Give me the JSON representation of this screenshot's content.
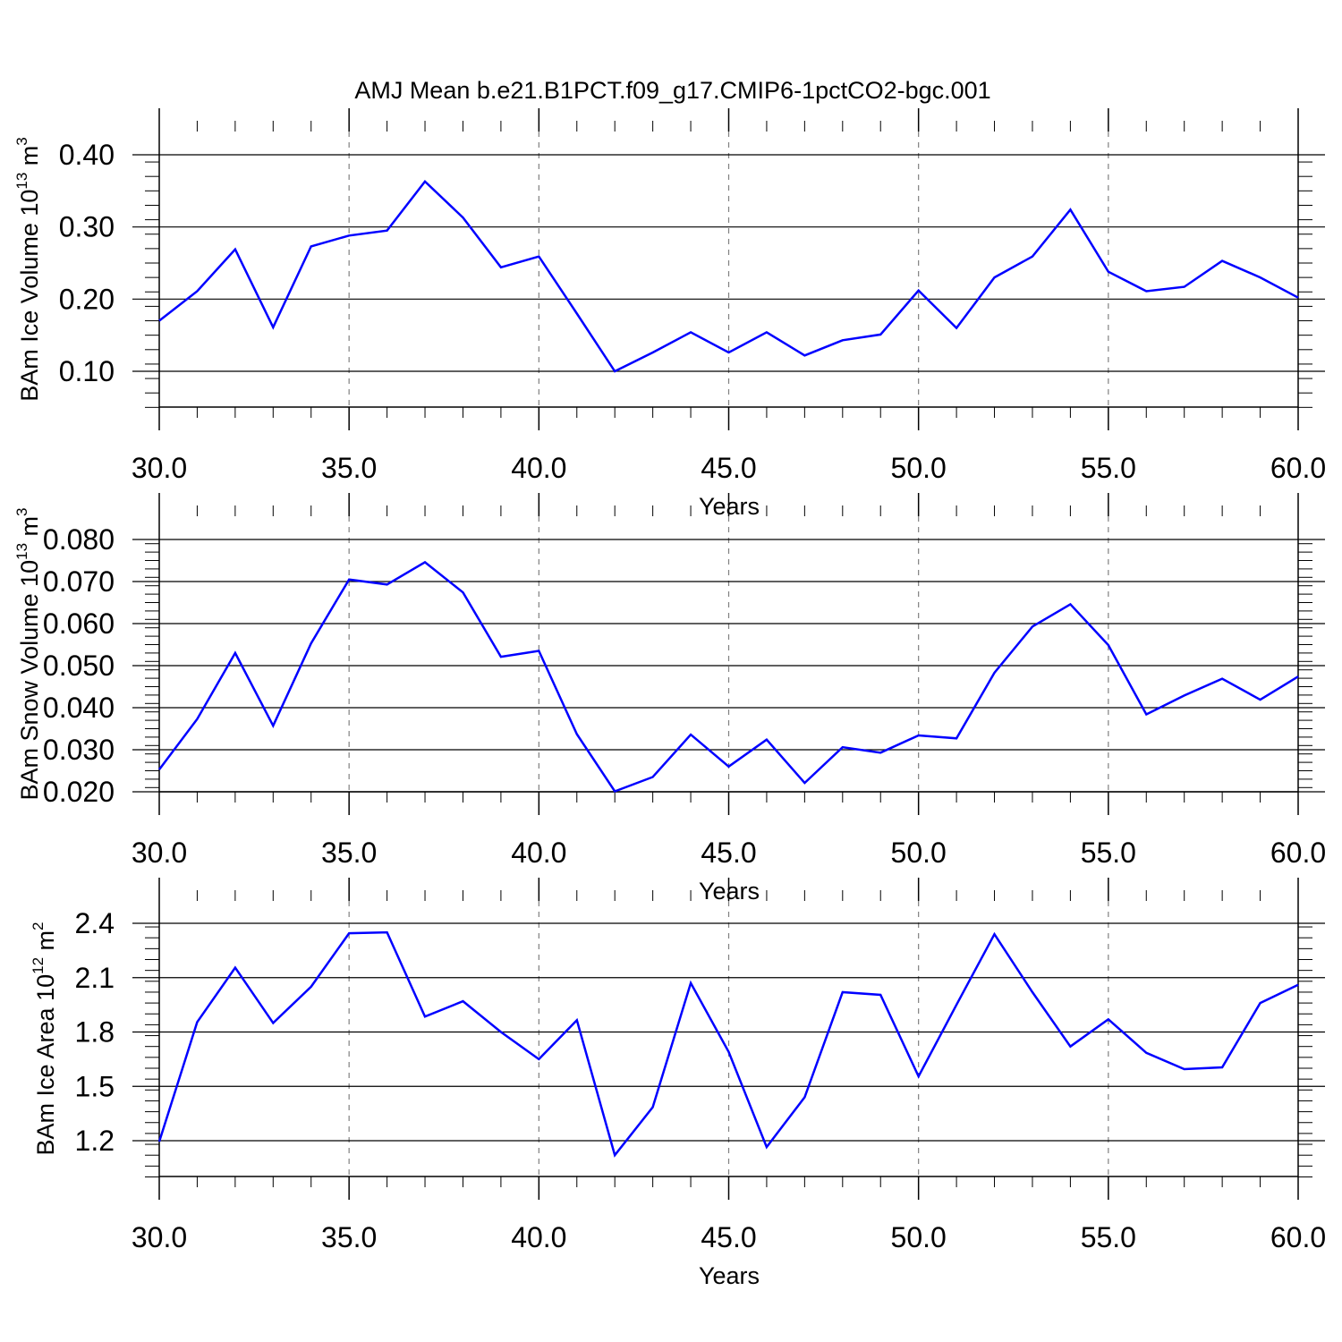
{
  "title": "AMJ Mean b.e21.B1PCT.f09_g17.CMIP6-1pctCO2-bgc.001",
  "colors": {
    "line": "#0000ff",
    "axis": "#000000",
    "grid": "#808080"
  },
  "chart_data": [
    {
      "type": "line",
      "ylabel": {
        "prefix": "BAm Ice Volume 10",
        "exp": "13",
        "unit": " m",
        "unit_exp": "3"
      },
      "xlabel": "Years",
      "xlim": [
        30,
        60
      ],
      "ylim": [
        0.05,
        0.4
      ],
      "xticks": [
        "30.0",
        "35.0",
        "40.0",
        "45.0",
        "50.0",
        "55.0",
        "60.0"
      ],
      "yticks": [
        {
          "value": 0.1,
          "label": "0.10"
        },
        {
          "value": 0.2,
          "label": "0.20"
        },
        {
          "value": 0.3,
          "label": "0.30"
        },
        {
          "value": 0.4,
          "label": "0.40"
        }
      ],
      "x": [
        30,
        31,
        32,
        33,
        34,
        35,
        36,
        37,
        38,
        39,
        40,
        41,
        42,
        43,
        44,
        45,
        46,
        47,
        48,
        49,
        50,
        51,
        52,
        53,
        54,
        55,
        56,
        57,
        58,
        59,
        60
      ],
      "values": [
        0.17,
        0.211,
        0.269,
        0.161,
        0.273,
        0.288,
        0.295,
        0.363,
        0.313,
        0.244,
        0.259,
        0.18,
        0.1,
        0.126,
        0.154,
        0.126,
        0.154,
        0.122,
        0.143,
        0.151,
        0.212,
        0.16,
        0.23,
        0.259,
        0.324,
        0.238,
        0.211,
        0.217,
        0.253,
        0.23,
        0.202
      ],
      "grid": "dashed vertical at major x ticks"
    },
    {
      "type": "line",
      "ylabel": {
        "prefix": "BAm Snow Volume 10",
        "exp": "13",
        "unit": " m",
        "unit_exp": "3"
      },
      "xlabel": "Years",
      "xlim": [
        30,
        60
      ],
      "ylim": [
        0.017,
        0.08
      ],
      "xticks": [
        "30.0",
        "35.0",
        "40.0",
        "45.0",
        "50.0",
        "55.0",
        "60.0"
      ],
      "yticks": [
        {
          "value": 0.02,
          "label": "0.020"
        },
        {
          "value": 0.03,
          "label": "0.030"
        },
        {
          "value": 0.04,
          "label": "0.040"
        },
        {
          "value": 0.05,
          "label": "0.050"
        },
        {
          "value": 0.06,
          "label": "0.060"
        },
        {
          "value": 0.07,
          "label": "0.070"
        },
        {
          "value": 0.08,
          "label": "0.080"
        }
      ],
      "x": [
        30,
        31,
        32,
        33,
        34,
        35,
        36,
        37,
        38,
        39,
        40,
        41,
        42,
        43,
        44,
        45,
        46,
        47,
        48,
        49,
        50,
        51,
        52,
        53,
        54,
        55,
        56,
        57,
        58,
        59,
        60
      ],
      "values": [
        0.0253,
        0.0373,
        0.053,
        0.0357,
        0.0553,
        0.0705,
        0.0693,
        0.0746,
        0.0674,
        0.0521,
        0.0535,
        0.0337,
        0.0201,
        0.0235,
        0.0336,
        0.026,
        0.0324,
        0.0221,
        0.0306,
        0.0293,
        0.0334,
        0.0327,
        0.0483,
        0.0593,
        0.0646,
        0.0549,
        0.0384,
        0.0429,
        0.0469,
        0.0419,
        0.0474
      ],
      "grid": "dashed vertical at major x ticks"
    },
    {
      "type": "line",
      "ylabel": {
        "prefix": "BAm Ice Area 10",
        "exp": "12",
        "unit": " m",
        "unit_exp": "2"
      },
      "xlabel": "Years",
      "xlim": [
        30,
        60
      ],
      "ylim": [
        1.0,
        2.4
      ],
      "xticks": [
        "30.0",
        "35.0",
        "40.0",
        "45.0",
        "50.0",
        "55.0",
        "60.0"
      ],
      "yticks": [
        {
          "value": 1.2,
          "label": "1.2"
        },
        {
          "value": 1.5,
          "label": "1.5"
        },
        {
          "value": 1.8,
          "label": "1.8"
        },
        {
          "value": 2.1,
          "label": "2.1"
        },
        {
          "value": 2.4,
          "label": "2.4"
        }
      ],
      "x": [
        30,
        31,
        32,
        33,
        34,
        35,
        36,
        37,
        38,
        39,
        40,
        41,
        42,
        43,
        44,
        45,
        46,
        47,
        48,
        49,
        50,
        51,
        52,
        53,
        54,
        55,
        56,
        57,
        58,
        59,
        60
      ],
      "values": [
        1.195,
        1.855,
        2.155,
        1.85,
        2.05,
        2.345,
        2.35,
        1.885,
        1.97,
        1.8,
        1.65,
        1.865,
        1.12,
        1.385,
        2.07,
        1.69,
        1.165,
        1.44,
        2.02,
        2.005,
        1.555,
        1.95,
        2.34,
        2.02,
        1.72,
        1.87,
        1.685,
        1.595,
        1.605,
        1.96,
        2.06
      ],
      "grid": "dashed vertical at major x ticks"
    }
  ]
}
